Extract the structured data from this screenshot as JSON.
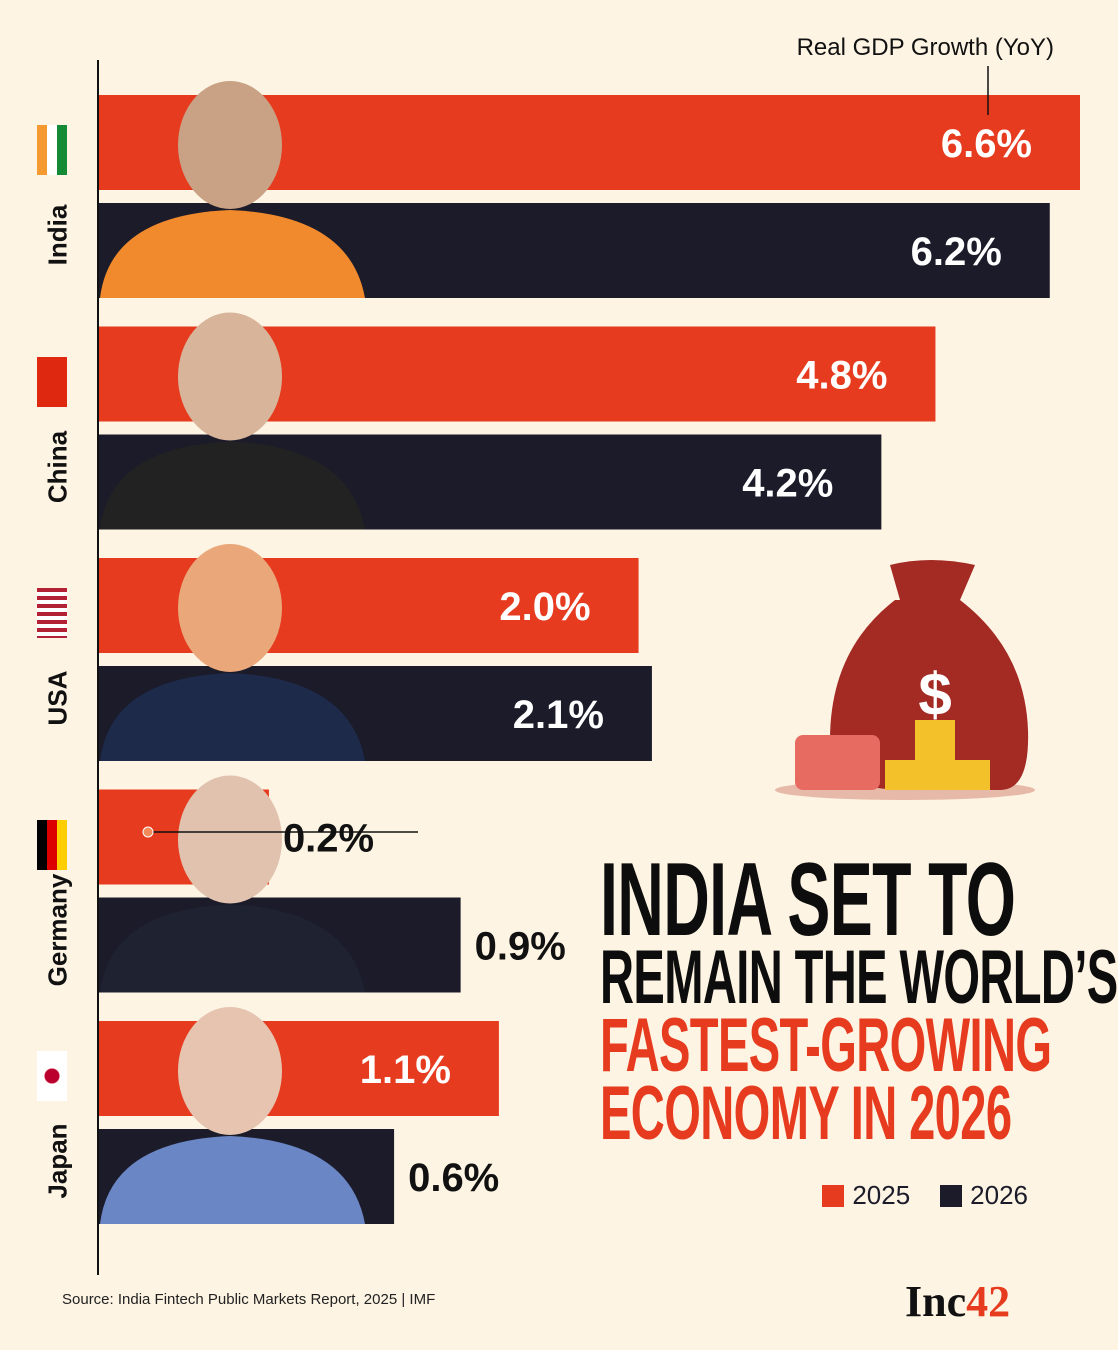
{
  "chart_data": {
    "type": "bar",
    "orientation": "horizontal",
    "title": "INDIA SET TO REMAIN THE WORLD’S FASTEST-GROWING ECONOMY IN 2026",
    "title_lines": [
      {
        "text": "INDIA SET TO",
        "style": "t1"
      },
      {
        "text": "REMAIN THE WORLD’S",
        "style": "t2"
      },
      {
        "text": "FASTEST-GROWING",
        "style": "t3"
      },
      {
        "text": "ECONOMY IN 2026",
        "style": "t3"
      }
    ],
    "value_label": "Real GDP Growth (YoY)",
    "categories": [
      "India",
      "China",
      "USA",
      "Germany",
      "Japan"
    ],
    "series": [
      {
        "name": "2025",
        "color": "#e63b1f",
        "values": [
          6.6,
          4.8,
          2.0,
          0.2,
          1.1
        ]
      },
      {
        "name": "2026",
        "color": "#1b1b2a",
        "values": [
          6.2,
          4.2,
          2.1,
          0.9,
          0.6
        ]
      }
    ],
    "unit": "%",
    "legend_placement": "bottom-right",
    "grid": false
  },
  "source": "Source: India Fintech Public Markets Report, 2025 | IMF",
  "logo": {
    "text": "Inc",
    "accent": "42"
  },
  "colors": {
    "background": "#fdf4e3",
    "accent": "#e63b1f",
    "dark": "#1b1b2a"
  },
  "icons": [
    "money-bag-icon",
    "wallet-icon",
    "coin-stack-icon"
  ]
}
